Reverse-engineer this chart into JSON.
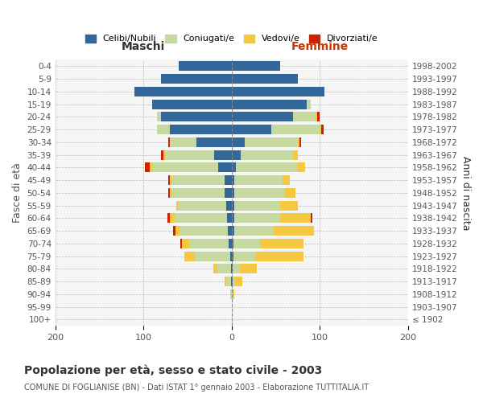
{
  "age_groups": [
    "100+",
    "95-99",
    "90-94",
    "85-89",
    "80-84",
    "75-79",
    "70-74",
    "65-69",
    "60-64",
    "55-59",
    "50-54",
    "45-49",
    "40-44",
    "35-39",
    "30-34",
    "25-29",
    "20-24",
    "15-19",
    "10-14",
    "5-9",
    "0-4"
  ],
  "birth_years": [
    "≤ 1902",
    "1903-1907",
    "1908-1912",
    "1913-1917",
    "1918-1922",
    "1923-1927",
    "1928-1932",
    "1933-1937",
    "1938-1942",
    "1943-1947",
    "1948-1952",
    "1953-1957",
    "1958-1962",
    "1963-1967",
    "1968-1972",
    "1973-1977",
    "1978-1982",
    "1983-1987",
    "1988-1992",
    "1993-1997",
    "1998-2002"
  ],
  "males": {
    "celibi": [
      0,
      0,
      0,
      1,
      1,
      2,
      3,
      4,
      5,
      6,
      8,
      8,
      15,
      20,
      40,
      70,
      80,
      90,
      110,
      80,
      60
    ],
    "coniugati": [
      0,
      0,
      2,
      5,
      15,
      40,
      45,
      55,
      60,
      55,
      60,
      60,
      75,
      55,
      30,
      15,
      5,
      0,
      0,
      0,
      0
    ],
    "vedovi": [
      0,
      0,
      0,
      2,
      5,
      12,
      8,
      5,
      5,
      2,
      2,
      2,
      3,
      2,
      0,
      0,
      0,
      0,
      0,
      0,
      0
    ],
    "divorziati": [
      0,
      0,
      0,
      0,
      0,
      0,
      2,
      2,
      3,
      0,
      2,
      2,
      5,
      3,
      2,
      0,
      0,
      0,
      0,
      0,
      0
    ]
  },
  "females": {
    "nubili": [
      0,
      0,
      0,
      1,
      1,
      2,
      2,
      3,
      3,
      3,
      3,
      3,
      5,
      10,
      15,
      45,
      70,
      85,
      105,
      75,
      55
    ],
    "coniugate": [
      0,
      0,
      1,
      3,
      8,
      25,
      30,
      45,
      52,
      52,
      57,
      55,
      70,
      60,
      60,
      55,
      25,
      5,
      0,
      0,
      0
    ],
    "vedove": [
      0,
      0,
      2,
      8,
      20,
      55,
      50,
      45,
      35,
      20,
      12,
      8,
      8,
      5,
      2,
      2,
      2,
      0,
      0,
      0,
      0
    ],
    "divorziate": [
      0,
      0,
      0,
      0,
      0,
      0,
      0,
      0,
      2,
      0,
      0,
      0,
      0,
      0,
      2,
      2,
      3,
      0,
      0,
      0,
      0
    ]
  },
  "colors": {
    "celibi": "#336699",
    "coniugati": "#c5d9a0",
    "vedovi": "#f5c842",
    "divorziati": "#cc2200"
  },
  "title": "Popolazione per età, sesso e stato civile - 2003",
  "subtitle": "COMUNE DI FOGLIANISE (BN) - Dati ISTAT 1° gennaio 2003 - Elaborazione TUTTITALIA.IT",
  "xlabel_left": "Maschi",
  "xlabel_right": "Femmine",
  "ylabel_left": "Fasce di età",
  "ylabel_right": "Anni di nascita",
  "xlim": 200,
  "background_color": "#ffffff",
  "legend_labels": [
    "Celibi/Nubili",
    "Coniugati/e",
    "Vedovi/e",
    "Divorziati/e"
  ]
}
